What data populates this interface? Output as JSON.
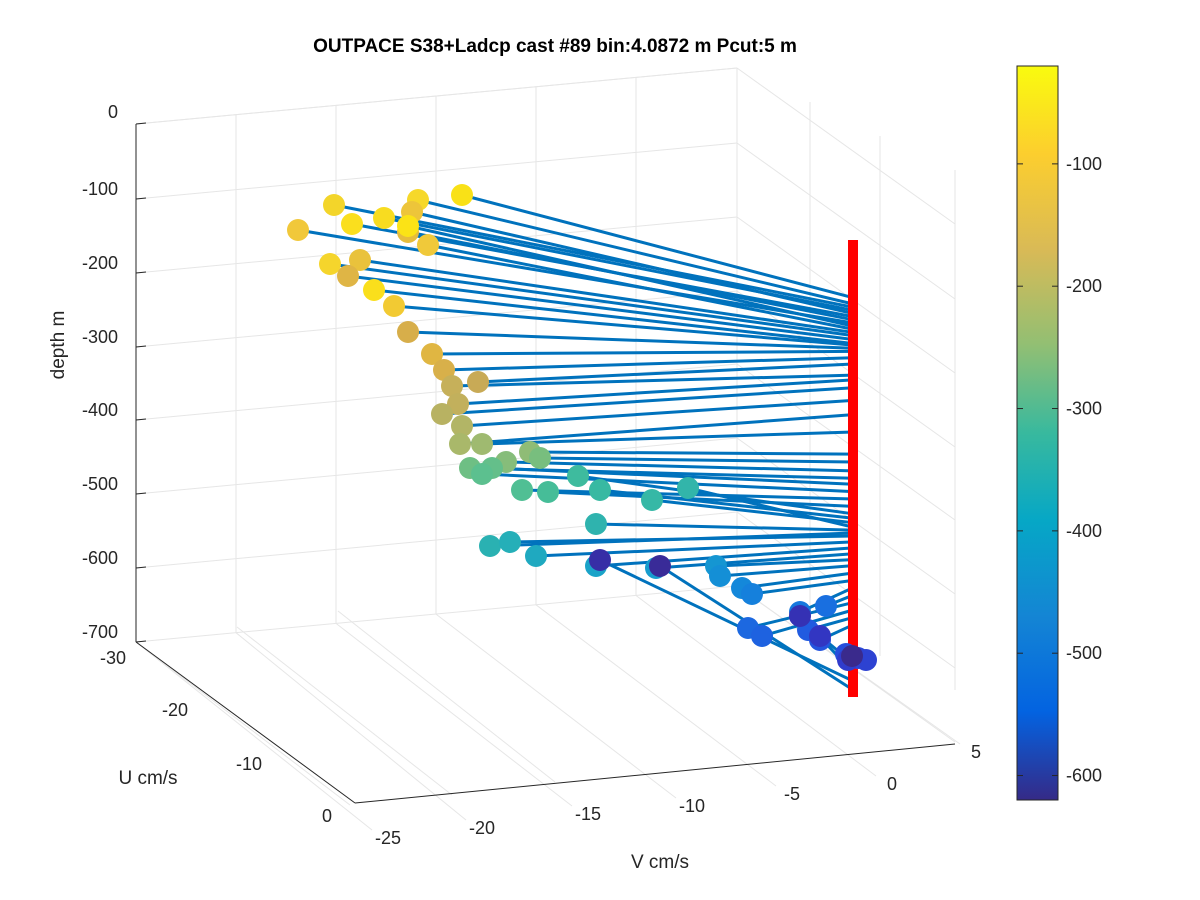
{
  "chart_data": {
    "type": "scatter",
    "title": "OUTPACE S38+Ladcp cast #89 bin:4.0872 m  Pcut:5 m",
    "xlabel": "V cm/s",
    "ylabel": "U cm/s",
    "zlabel": "depth m",
    "v_ticks": [
      "-25",
      "-20",
      "-15",
      "-10",
      "-5",
      "0",
      "5"
    ],
    "u_ticks": [
      "-30",
      "-20",
      "-10",
      "0"
    ],
    "depth_ticks": [
      "0",
      "-100",
      "-200",
      "-300",
      "-400",
      "-500",
      "-600",
      "-700"
    ],
    "colorbar_ticks": [
      "-100",
      "-200",
      "-300",
      "-400",
      "-500",
      "-600"
    ],
    "colorbar_range": [
      -620,
      -20
    ],
    "colormap": "parula",
    "line_color": "#0072bd",
    "mast_color": "#ff0000",
    "grid": true,
    "mast": {
      "v": -0.8,
      "depth_top": -150,
      "depth_bottom": -705
    },
    "points": [
      {
        "depth": -92,
        "color": "#f9e117"
      },
      {
        "depth": -100,
        "color": "#f6d82a"
      },
      {
        "depth": -104,
        "color": "#f3d52a"
      },
      {
        "depth": -108,
        "color": "#f8dc20"
      },
      {
        "depth": -112,
        "color": "#edc53a"
      },
      {
        "depth": -116,
        "color": "#fadf1e"
      },
      {
        "depth": -120,
        "color": "#e6bd3c"
      },
      {
        "depth": -124,
        "color": "#f1c83a"
      },
      {
        "depth": -128,
        "color": "#fbe316"
      },
      {
        "depth": -132,
        "color": "#f0c93a"
      },
      {
        "depth": -136,
        "color": "#e9c23c"
      },
      {
        "depth": -140,
        "color": "#f5d52c"
      },
      {
        "depth": -145,
        "color": "#dfb545"
      },
      {
        "depth": -150,
        "color": "#fadf1c"
      },
      {
        "depth": -152,
        "color": "#f2ca33"
      },
      {
        "depth": -156,
        "color": "#d7ae4a"
      },
      {
        "depth": -160,
        "color": "#e0b642"
      },
      {
        "depth": -168,
        "color": "#d8b04a"
      },
      {
        "depth": -176,
        "color": "#c8aa56"
      },
      {
        "depth": -190,
        "color": "#c6b05a"
      },
      {
        "depth": -196,
        "color": "#c2b05c"
      },
      {
        "depth": -206,
        "color": "#b8b262"
      },
      {
        "depth": -222,
        "color": "#b2b566"
      },
      {
        "depth": -240,
        "color": "#a9b86a"
      },
      {
        "depth": -262,
        "color": "#9fba70"
      },
      {
        "depth": -290,
        "color": "#8fbc76"
      },
      {
        "depth": -300,
        "color": "#78be7e"
      },
      {
        "depth": -312,
        "color": "#86bd7a"
      },
      {
        "depth": -322,
        "color": "#6ebf84"
      },
      {
        "depth": -330,
        "color": "#64bf8a"
      },
      {
        "depth": -340,
        "color": "#5cc08f"
      },
      {
        "depth": -350,
        "color": "#50bf94"
      },
      {
        "depth": -360,
        "color": "#46bd98"
      },
      {
        "depth": -370,
        "color": "#3ebb9e"
      },
      {
        "depth": -376,
        "color": "#38b9a2"
      },
      {
        "depth": -382,
        "color": "#36b8a6"
      },
      {
        "depth": -388,
        "color": "#32b5aa"
      },
      {
        "depth": -392,
        "color": "#2fb3ae"
      },
      {
        "depth": -396,
        "color": "#2ab1b2"
      },
      {
        "depth": -400,
        "color": "#25afb8"
      },
      {
        "depth": -408,
        "color": "#1fa9c0"
      },
      {
        "depth": -416,
        "color": "#1aa3c8"
      },
      {
        "depth": -424,
        "color": "#179dce"
      },
      {
        "depth": -432,
        "color": "#1596d2"
      },
      {
        "depth": -440,
        "color": "#148fd6"
      },
      {
        "depth": -450,
        "color": "#1488da"
      },
      {
        "depth": -460,
        "color": "#1580dc"
      },
      {
        "depth": -470,
        "color": "#1678de"
      },
      {
        "depth": -480,
        "color": "#196fe0"
      },
      {
        "depth": -490,
        "color": "#1c68e0"
      },
      {
        "depth": -500,
        "color": "#1e62e0"
      },
      {
        "depth": -510,
        "color": "#215be0"
      },
      {
        "depth": -520,
        "color": "#2454de"
      },
      {
        "depth": -530,
        "color": "#274edc"
      },
      {
        "depth": -540,
        "color": "#2a48d8"
      },
      {
        "depth": -550,
        "color": "#2d42d2"
      },
      {
        "depth": -560,
        "color": "#303ccc"
      },
      {
        "depth": -572,
        "color": "#3236c2"
      },
      {
        "depth": -584,
        "color": "#3531b4"
      },
      {
        "depth": -596,
        "color": "#372ea6"
      },
      {
        "depth": -608,
        "color": "#392b98"
      },
      {
        "depth": -618,
        "color": "#3a2a8c"
      }
    ]
  }
}
